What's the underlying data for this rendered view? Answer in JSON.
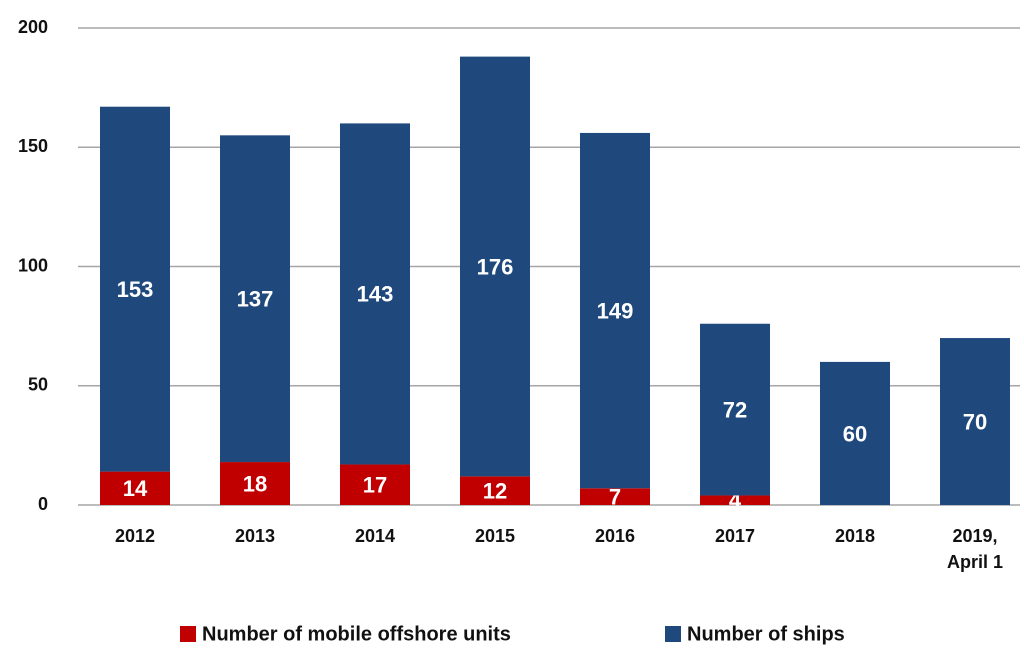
{
  "chart_data": {
    "type": "stacked-bar",
    "categories": [
      "2012",
      "2013",
      "2014",
      "2015",
      "2016",
      "2017",
      "2018",
      "2019, April 1"
    ],
    "series": [
      {
        "name": "Number of mobile offshore units",
        "color": "#c00000",
        "values": [
          14,
          18,
          17,
          12,
          7,
          4,
          null,
          null
        ]
      },
      {
        "name": "Number of ships",
        "color": "#1f497d",
        "values": [
          153,
          137,
          143,
          176,
          149,
          72,
          60,
          70
        ]
      }
    ],
    "ylim": [
      0,
      200
    ],
    "yticks": [
      0,
      50,
      100,
      150,
      200
    ],
    "grid": true,
    "legend": "bottom"
  }
}
